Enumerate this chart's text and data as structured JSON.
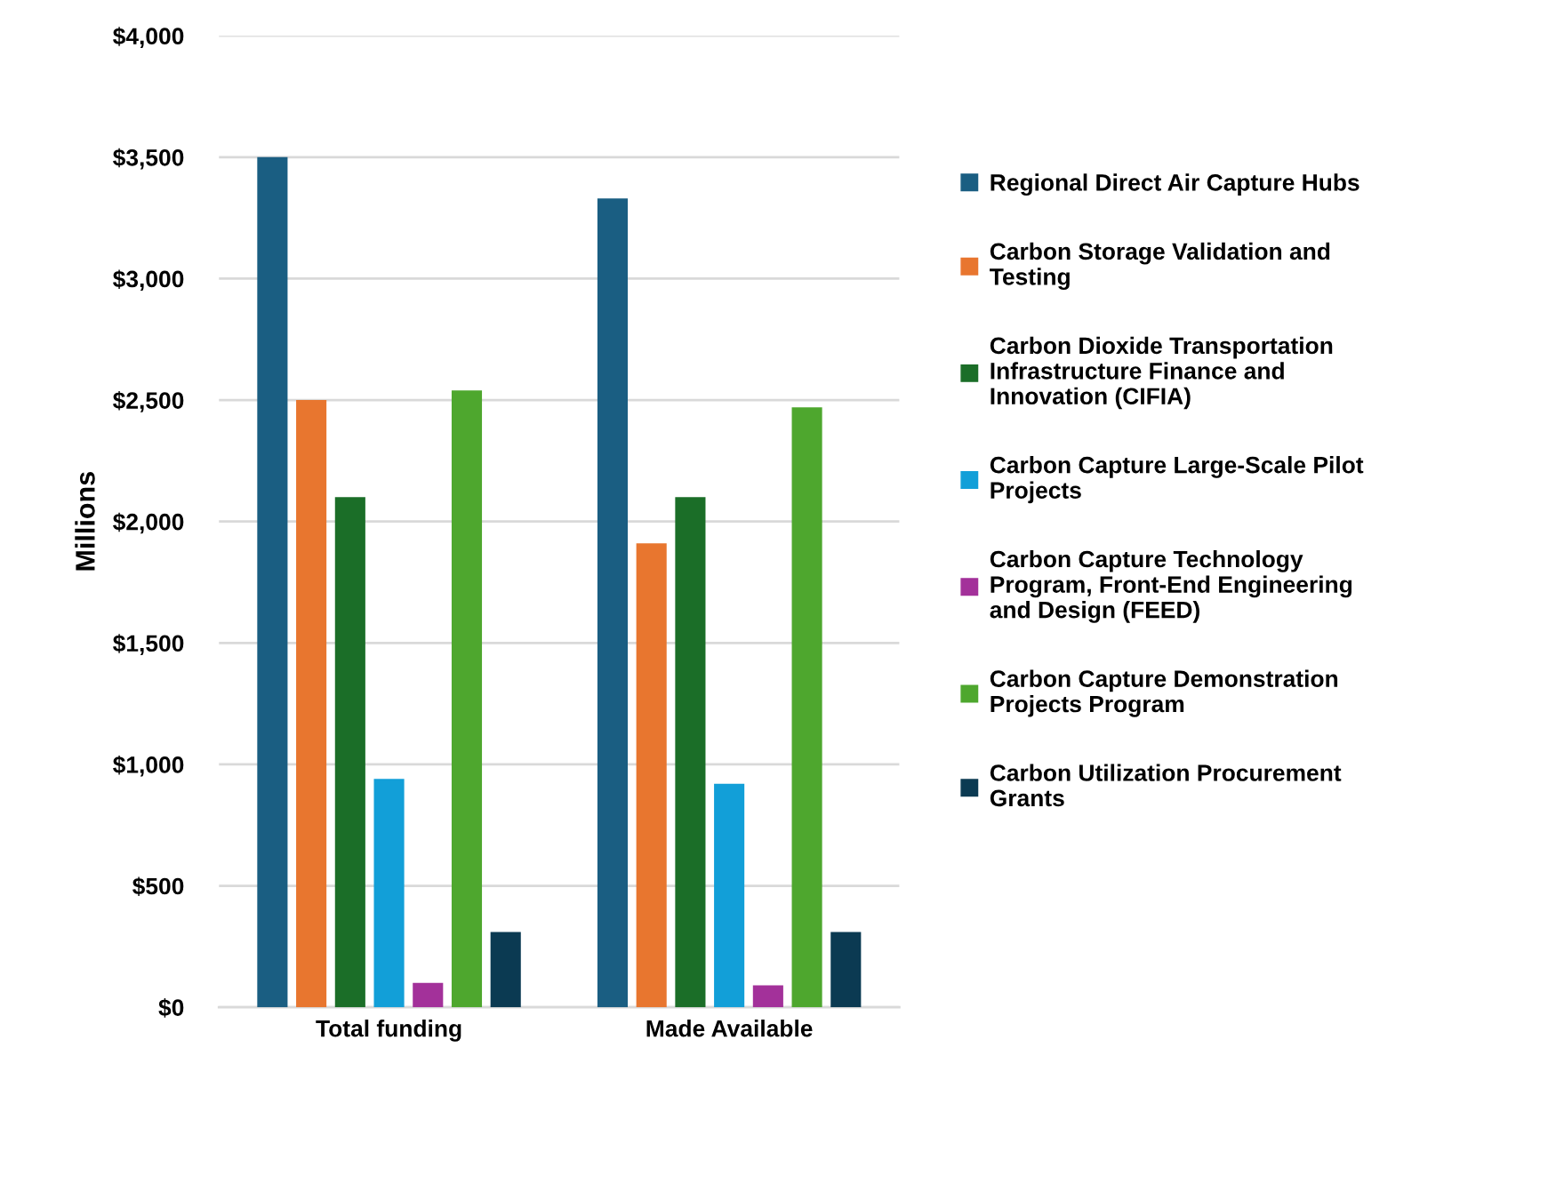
{
  "chart_data": {
    "type": "bar",
    "ylabel": "Millions",
    "categories": [
      "Total funding",
      "Made Available"
    ],
    "series": [
      {
        "name": "Regional Direct Air Capture Hubs",
        "color": "#1a5e82",
        "values": [
          3500,
          3330
        ]
      },
      {
        "name": "Carbon Storage Validation and Testing",
        "color": "#e8762f",
        "values": [
          2500,
          1910
        ]
      },
      {
        "name": "Carbon Dioxide Transportation Infrastructure Finance and Innovation (CIFIA)",
        "color": "#1b6e28",
        "values": [
          2100,
          2100
        ]
      },
      {
        "name": "Carbon Capture Large-Scale Pilot Projects",
        "color": "#129fd8",
        "values": [
          940,
          920
        ]
      },
      {
        "name": "Carbon Capture Technology Program, Front-End Engineering and Design (FEED)",
        "color": "#a3319a",
        "values": [
          100,
          90
        ]
      },
      {
        "name": "Carbon Capture Demonstration Projects Program",
        "color": "#4ea72e",
        "values": [
          2540,
          2470
        ]
      },
      {
        "name": "Carbon Utilization Procurement Grants",
        "color": "#0b3a52",
        "values": [
          310,
          310
        ]
      }
    ],
    "ylim": [
      0,
      4000
    ],
    "yticks": [
      {
        "value": 0,
        "label": "$0"
      },
      {
        "value": 500,
        "label": "$500"
      },
      {
        "value": 1000,
        "label": "$1,000"
      },
      {
        "value": 1500,
        "label": "$1,500"
      },
      {
        "value": 2000,
        "label": "$2,000"
      },
      {
        "value": 2500,
        "label": "$2,500"
      },
      {
        "value": 3000,
        "label": "$3,000"
      },
      {
        "value": 3500,
        "label": "$3,500"
      },
      {
        "value": 4000,
        "label": "$4,000"
      }
    ],
    "grid": "y",
    "legend": "right"
  }
}
